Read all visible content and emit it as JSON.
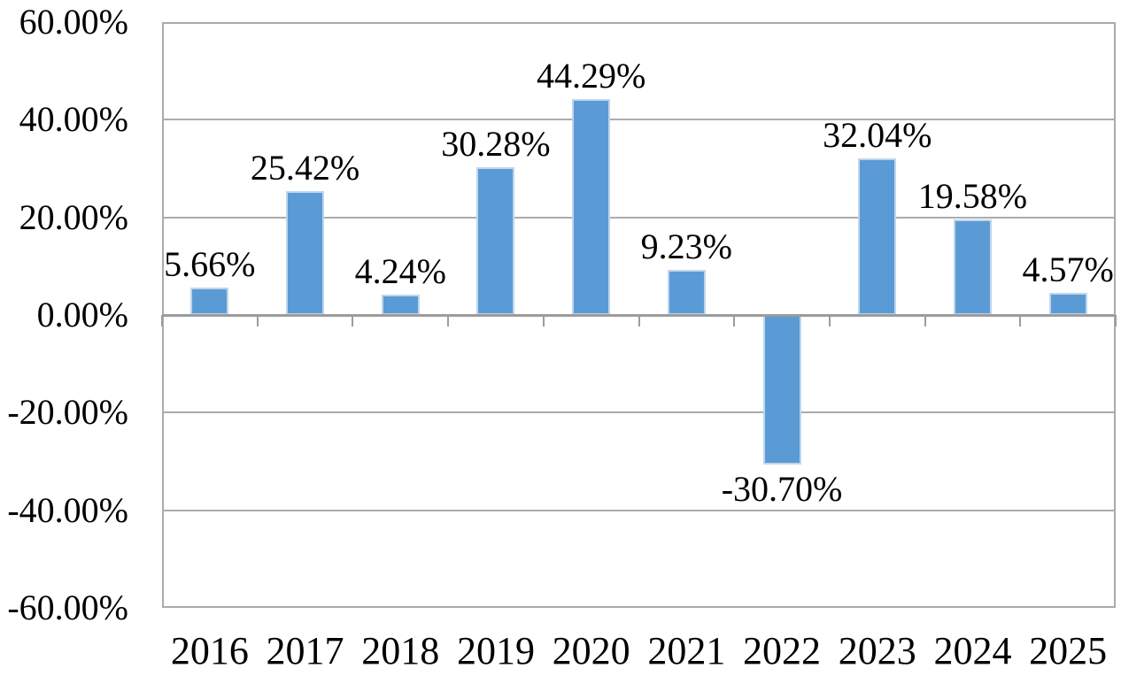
{
  "chart_data": {
    "type": "bar",
    "title": "",
    "xlabel": "",
    "ylabel": "",
    "categories": [
      "2016",
      "2017",
      "2018",
      "2019",
      "2020",
      "2021",
      "2022",
      "2023",
      "2024",
      "2025"
    ],
    "values": [
      5.66,
      25.42,
      4.24,
      30.28,
      44.29,
      9.23,
      -30.7,
      32.04,
      19.58,
      4.57
    ],
    "data_labels": [
      "5.66%",
      "25.42%",
      "4.24%",
      "30.28%",
      "44.29%",
      "9.23%",
      "-30.70%",
      "32.04%",
      "19.58%",
      "4.57%"
    ],
    "ylim": [
      -60,
      60
    ],
    "ytick_values": [
      60,
      40,
      20,
      0,
      -20,
      -40,
      -60
    ],
    "ytick_labels": [
      "60.00%",
      "40.00%",
      "20.00%",
      "0.00%",
      "-20.00%",
      "-40.00%",
      "-60.00%"
    ],
    "grid": true,
    "legend": "none",
    "bar_color": "#5B9BD5",
    "bar_border_color": "#BFD5EC",
    "gridline_color": "#ACACAC",
    "axis_color": "#9C9C9C",
    "border_color": "#ABABAB",
    "text_color": "#000000",
    "background": "#FFFFFF"
  }
}
